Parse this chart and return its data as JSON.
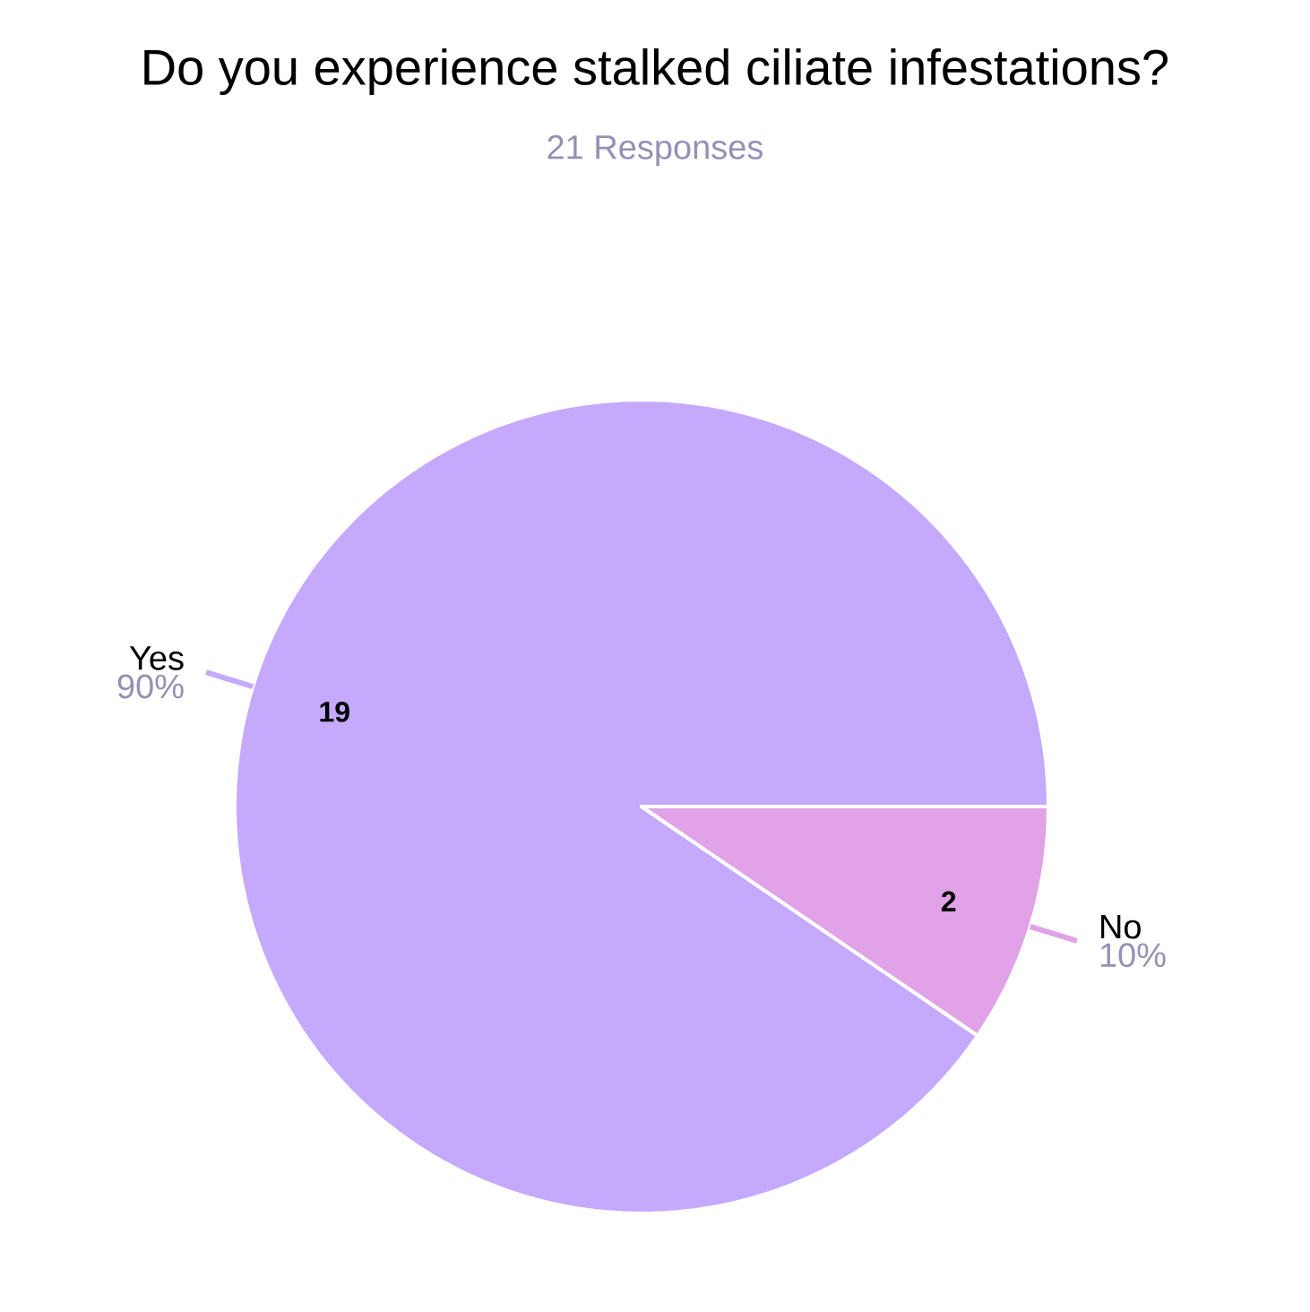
{
  "chart_data": {
    "type": "pie",
    "title": "Do you experience stalked ciliate infestations?",
    "subtitle": "21 Responses",
    "categories": [
      "Yes",
      "No"
    ],
    "values": [
      19,
      2
    ],
    "colors": [
      "#c5a9fd",
      "#e1a2e8"
    ],
    "data_labels": true,
    "annotations": [
      "90%",
      "10%"
    ]
  }
}
